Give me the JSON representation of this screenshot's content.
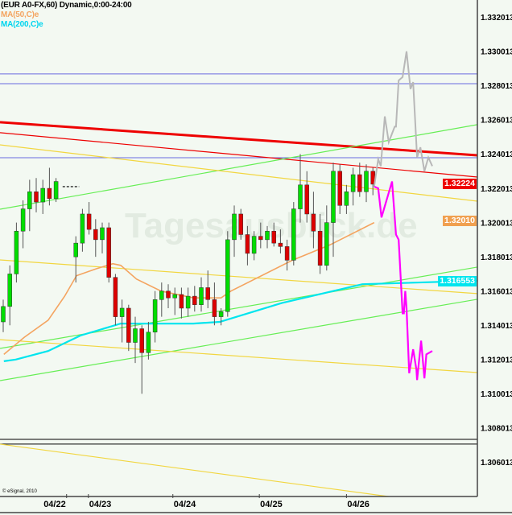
{
  "header": {
    "title": "(EUR A0-FX,60) Dynamic,0:00-24:00",
    "ma50_label": "MA(50,C)e",
    "ma200_label": "MA(200,C)e"
  },
  "copyright": "© eSignal, 2010",
  "watermark": "Tagesausblick.de",
  "colors": {
    "background": "#f3f9f2",
    "up_candle": "#00dd00",
    "down_candle": "#dd0000",
    "ma50": "#f4a460",
    "ma200": "#00e5ee",
    "forecast_up": "#b8b8b8",
    "forecast_down": "#ff00ff",
    "horizontal_blue": "#6a6ae0",
    "trend_red": "#ee0000",
    "trend_green": "#66ee55",
    "trend_yellow": "#f2d640"
  },
  "price_tags": [
    {
      "text": "1.32224",
      "price": 1.32224,
      "color": "#ee0000"
    },
    {
      "text": "1.32010",
      "price": 1.3201,
      "color": "#f0a050"
    },
    {
      "text": "1.316553",
      "price": 1.316553,
      "color": "#00e5ee"
    }
  ],
  "chart_data": {
    "type": "candlestick",
    "title": "(EUR A0-FX,60) Dynamic,0:00-24:00",
    "ylim": [
      1.3033,
      1.333
    ],
    "xlim_bars": [
      -0.5,
      71.8
    ],
    "y_ticks": [
      "1.332013",
      "1.330013",
      "1.328013",
      "1.326013",
      "1.324013",
      "1.322013",
      "1.320013",
      "1.318013",
      "1.316013",
      "1.314013",
      "1.312013",
      "1.310013",
      "1.308013",
      "1.306013"
    ],
    "y_tick_values": [
      1.332013,
      1.330013,
      1.328013,
      1.326013,
      1.324013,
      1.322013,
      1.320013,
      1.318013,
      1.316013,
      1.314013,
      1.312013,
      1.310013,
      1.308013,
      1.306013
    ],
    "x_ticks": [
      {
        "label": "04/22",
        "bar": 9.6
      },
      {
        "label": "04/23",
        "bar": 12.9
      },
      {
        "label": "04/24",
        "bar": 25.7
      },
      {
        "label": "04/25",
        "bar": 38.8
      },
      {
        "label": "04/26",
        "bar": 52.0
      }
    ],
    "candles_ohlc": [
      [
        1.3142,
        1.3155,
        1.3136,
        1.3151
      ],
      [
        1.3151,
        1.3175,
        1.314,
        1.317
      ],
      [
        1.317,
        1.32,
        1.3165,
        1.3195
      ],
      [
        1.3195,
        1.3213,
        1.3185,
        1.3208
      ],
      [
        1.3208,
        1.3225,
        1.3195,
        1.3218
      ],
      [
        1.3218,
        1.3226,
        1.3206,
        1.3212
      ],
      [
        1.3212,
        1.3225,
        1.3205,
        1.322
      ],
      [
        1.322,
        1.3232,
        1.321,
        1.3214
      ],
      [
        1.3214,
        1.3226,
        1.3212,
        1.3224
      ],
      null,
      null,
      [
        1.318,
        1.3192,
        1.3165,
        1.3188
      ],
      [
        1.3188,
        1.3208,
        1.3183,
        1.3205
      ],
      [
        1.3205,
        1.3212,
        1.3193,
        1.3196
      ],
      [
        1.3196,
        1.3202,
        1.318,
        1.319
      ],
      [
        1.319,
        1.32,
        1.3182,
        1.3197
      ],
      [
        1.3197,
        1.32,
        1.3165,
        1.3168
      ],
      [
        1.3168,
        1.317,
        1.314,
        1.3145
      ],
      [
        1.3145,
        1.3155,
        1.313,
        1.315
      ],
      [
        1.315,
        1.3152,
        1.3125,
        1.313
      ],
      [
        1.313,
        1.3145,
        1.3118,
        1.3138
      ],
      [
        1.3138,
        1.314,
        1.31,
        1.3124
      ],
      [
        1.3124,
        1.3142,
        1.312,
        1.3136
      ],
      [
        1.3136,
        1.316,
        1.313,
        1.3155
      ],
      [
        1.3155,
        1.3165,
        1.3145,
        1.316
      ],
      [
        1.316,
        1.3164,
        1.315,
        1.3156
      ],
      [
        1.3156,
        1.3162,
        1.3146,
        1.3158
      ],
      [
        1.3158,
        1.3162,
        1.3144,
        1.315
      ],
      [
        1.315,
        1.3162,
        1.3145,
        1.3157
      ],
      [
        1.3157,
        1.3163,
        1.3148,
        1.3152
      ],
      [
        1.3152,
        1.3168,
        1.3148,
        1.3162
      ],
      [
        1.3162,
        1.3172,
        1.315,
        1.3155
      ],
      [
        1.3155,
        1.3165,
        1.314,
        1.3145
      ],
      [
        1.3145,
        1.315,
        1.314,
        1.3148
      ],
      [
        1.3148,
        1.3195,
        1.3145,
        1.319
      ],
      [
        1.319,
        1.321,
        1.318,
        1.3205
      ],
      [
        1.3205,
        1.3208,
        1.319,
        1.3193
      ],
      [
        1.3193,
        1.3198,
        1.3175,
        1.3182
      ],
      [
        1.3182,
        1.3195,
        1.3178,
        1.3192
      ],
      [
        1.3192,
        1.32,
        1.3185,
        1.319
      ],
      [
        1.319,
        1.3198,
        1.3185,
        1.3195
      ],
      [
        1.3195,
        1.32,
        1.3186,
        1.3188
      ],
      [
        1.3188,
        1.3196,
        1.3182,
        1.3186
      ],
      [
        1.3186,
        1.319,
        1.3172,
        1.3178
      ],
      [
        1.3178,
        1.3212,
        1.3175,
        1.3208
      ],
      [
        1.3208,
        1.324,
        1.32,
        1.3222
      ],
      [
        1.3222,
        1.323,
        1.32,
        1.3205
      ],
      [
        1.3205,
        1.3218,
        1.3185,
        1.3195
      ],
      [
        1.3195,
        1.3205,
        1.317,
        1.3175
      ],
      [
        1.3175,
        1.321,
        1.3172,
        1.32
      ],
      [
        1.32,
        1.3235,
        1.318,
        1.323
      ],
      [
        1.323,
        1.3234,
        1.3205,
        1.321
      ],
      [
        1.321,
        1.3222,
        1.3205,
        1.3218
      ],
      [
        1.3218,
        1.3232,
        1.321,
        1.3228
      ],
      [
        1.3228,
        1.3235,
        1.3215,
        1.3218
      ],
      [
        1.3218,
        1.3234,
        1.3212,
        1.323
      ],
      [
        1.323,
        1.3232,
        1.3216,
        1.32224
      ]
    ],
    "previous_close_marker": {
      "price": 1.3221,
      "from_bar": 9.0,
      "to_bar": 11.5
    },
    "ma50": [
      [
        0.1,
        1.3123
      ],
      [
        3.2,
        1.3133
      ],
      [
        6.8,
        1.3143
      ],
      [
        9.3,
        1.3157
      ],
      [
        11.1,
        1.3169
      ],
      [
        14.1,
        1.3173
      ],
      [
        16.6,
        1.3176
      ],
      [
        17.8,
        1.3175
      ],
      [
        20.2,
        1.3167
      ],
      [
        23.9,
        1.316
      ],
      [
        28.8,
        1.3156
      ],
      [
        33,
        1.3156
      ],
      [
        34.5,
        1.316
      ],
      [
        43.8,
        1.3178
      ],
      [
        49.5,
        1.3187
      ],
      [
        56.2,
        1.32
      ]
    ],
    "ma200": [
      [
        0.1,
        1.3119
      ],
      [
        1.9,
        1.312
      ],
      [
        6.8,
        1.3125
      ],
      [
        11.7,
        1.3134
      ],
      [
        17.8,
        1.3141
      ],
      [
        28.8,
        1.3141
      ],
      [
        32.8,
        1.3142
      ],
      [
        42.2,
        1.3153
      ],
      [
        54.4,
        1.3164
      ],
      [
        71.8,
        1.3166
      ]
    ],
    "forecast_up": [
      [
        56.2,
        1.3221
      ],
      [
        56.8,
        1.3237
      ],
      [
        57.2,
        1.3233
      ],
      [
        57.8,
        1.3262
      ],
      [
        58.4,
        1.3247
      ],
      [
        59.3,
        1.3256
      ],
      [
        59.5,
        1.3256
      ],
      [
        59.9,
        1.3283
      ],
      [
        60.5,
        1.3285
      ],
      [
        61.1,
        1.33
      ],
      [
        61.7,
        1.3278
      ],
      [
        62.1,
        1.3282
      ],
      [
        62.7,
        1.3238
      ],
      [
        63.2,
        1.3244
      ],
      [
        63.8,
        1.323
      ],
      [
        64.4,
        1.3238
      ],
      [
        65.0,
        1.3233
      ]
    ],
    "forecast_down": [
      [
        56.2,
        1.3221
      ],
      [
        56.8,
        1.322
      ],
      [
        57.3,
        1.3203
      ],
      [
        58.9,
        1.3224
      ],
      [
        59.5,
        1.3193
      ],
      [
        59.9,
        1.319
      ],
      [
        60.5,
        1.3147
      ],
      [
        60.7,
        1.3147
      ],
      [
        60.9,
        1.316
      ],
      [
        61.1,
        1.315
      ],
      [
        61.5,
        1.3112
      ],
      [
        62.1,
        1.3126
      ],
      [
        62.6,
        1.3114
      ],
      [
        62.7,
        1.3108
      ],
      [
        63.3,
        1.3131
      ],
      [
        63.8,
        1.3109
      ],
      [
        64.1,
        1.3123
      ],
      [
        65.0,
        1.3125
      ]
    ],
    "horizontal_lines": [
      {
        "price": 1.32868,
        "color": "#6a6ae0"
      },
      {
        "price": 1.32811,
        "color": "#6a6ae0"
      },
      {
        "price": 1.32379,
        "color": "#6a6ae0"
      },
      {
        "price": 1.30734,
        "color": "#000000"
      },
      {
        "price": 1.30706,
        "color": "#000000"
      }
    ],
    "trendlines": [
      {
        "start_price": 1.32525,
        "end_price": 1.32266,
        "color": "#ee0000",
        "weight": "thin"
      },
      {
        "start_price": 1.32586,
        "end_price": 1.32393,
        "color": "#ee0000",
        "weight": "thick"
      },
      {
        "start_price": 1.32078,
        "end_price": 1.32572,
        "color": "#66ee55",
        "weight": "thin"
      },
      {
        "start_price": 1.31265,
        "end_price": 1.3174,
        "color": "#66ee55",
        "weight": "thin"
      },
      {
        "start_price": 1.31077,
        "end_price": 1.31552,
        "color": "#66ee55",
        "weight": "thin"
      },
      {
        "start_price": 1.32454,
        "end_price": 1.32125,
        "color": "#f2d640",
        "weight": "thin"
      },
      {
        "start_price": 1.31782,
        "end_price": 1.31585,
        "color": "#f2d640",
        "weight": "thin"
      },
      {
        "start_price": 1.31316,
        "end_price": 1.31124,
        "color": "#f2d640",
        "weight": "thin"
      },
      {
        "start_price": 1.30706,
        "end_price": 1.3033,
        "color": "#f2d640",
        "weight": "thin"
      }
    ],
    "grid": false,
    "legend": "top-left"
  }
}
